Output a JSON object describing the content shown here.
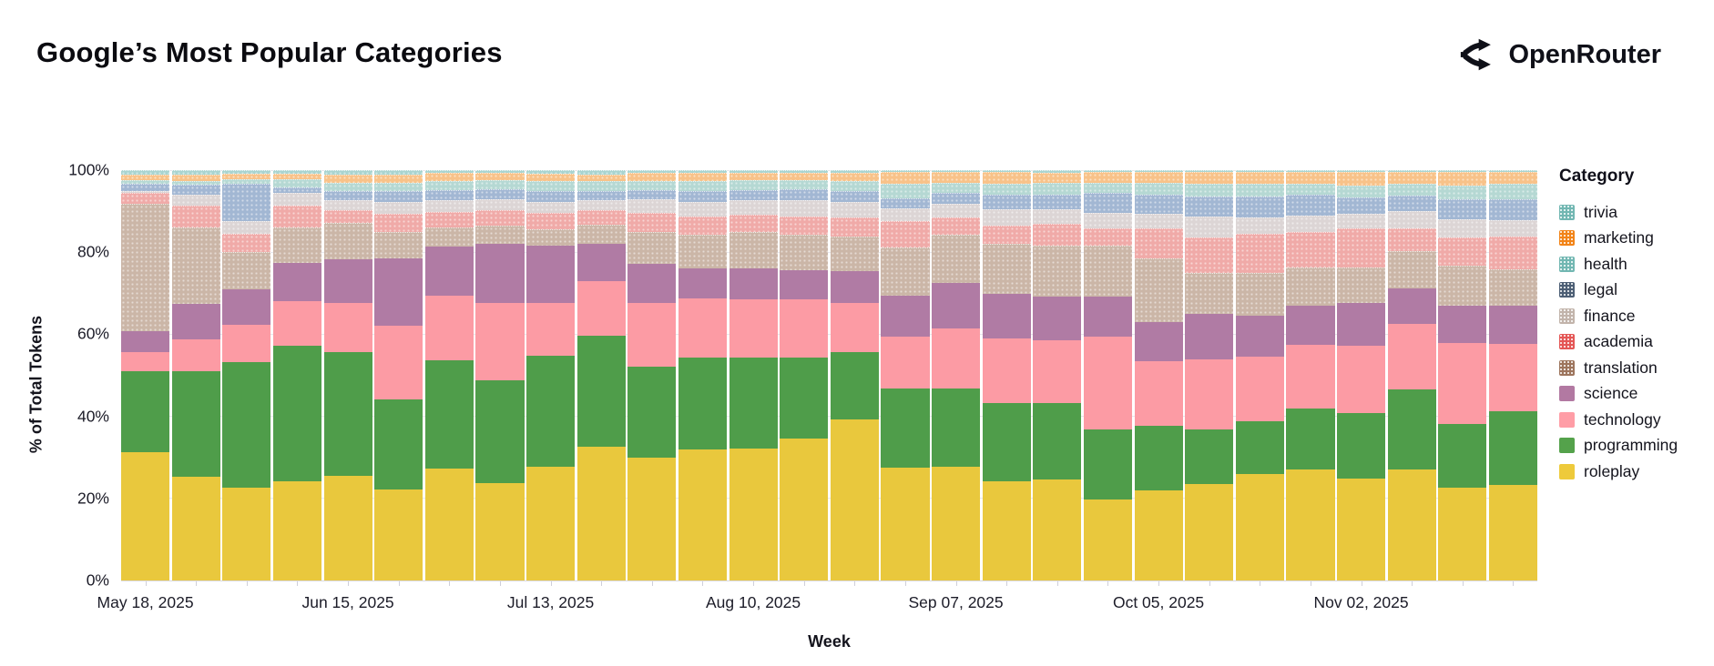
{
  "header": {
    "title": "Google’s Most Popular Categories",
    "brand": "OpenRouter"
  },
  "chart_data": {
    "type": "bar",
    "subtype": "stacked-percent",
    "title": "Google’s Most Popular Categories",
    "xlabel": "Week",
    "ylabel": "% of Total Tokens",
    "ylim": [
      0,
      100
    ],
    "y_ticks": [
      "0%",
      "20%",
      "40%",
      "60%",
      "80%",
      "100%"
    ],
    "x_tick_labels": [
      "May 18, 2025",
      "Jun 15, 2025",
      "Jul 13, 2025",
      "Aug 10, 2025",
      "Sep 07, 2025",
      "Oct 05, 2025",
      "Nov 02, 2025"
    ],
    "labeled_tick_indices": [
      0,
      4,
      8,
      12,
      16,
      20,
      24
    ],
    "legend_title": "Category",
    "legend_position": "right",
    "grid": true,
    "categories": [
      {
        "name": "trivia",
        "legend_color": "#72b7b2",
        "bar_color": "#a9d4d0",
        "textured": true
      },
      {
        "name": "marketing",
        "legend_color": "#f28418",
        "bar_color": "#f8c289",
        "textured": true
      },
      {
        "name": "health",
        "legend_color": "#72b7b2",
        "bar_color": "#b5d8d3",
        "textured": true
      },
      {
        "name": "legal",
        "legend_color": "#4d5f75",
        "bar_color": "#a2b7d3",
        "textured": true
      },
      {
        "name": "finance",
        "legend_color": "#c2b4ab",
        "bar_color": "#dcd5d5",
        "textured": true
      },
      {
        "name": "academia",
        "legend_color": "#e45756",
        "bar_color": "#f0aaa8",
        "textured": true
      },
      {
        "name": "translation",
        "legend_color": "#9d755d",
        "bar_color": "#cbb6a7",
        "textured": true
      },
      {
        "name": "science",
        "legend_color": "#b279a2",
        "bar_color": "#b07ba4",
        "textured": false
      },
      {
        "name": "technology",
        "legend_color": "#ff9da6",
        "bar_color": "#fc9ba4",
        "textured": false
      },
      {
        "name": "programming",
        "legend_color": "#54a24b",
        "bar_color": "#4f9d4a",
        "textured": false
      },
      {
        "name": "roleplay",
        "legend_color": "#eeca3b",
        "bar_color": "#e9c83d",
        "textured": false
      }
    ],
    "weeks": [
      {
        "label": "May 18, 2025",
        "values": {
          "roleplay": 31.8,
          "programming": 19.9,
          "technology": 4.9,
          "science": 5.1,
          "translation": 31.2,
          "academia": 2.5,
          "finance": 0.4,
          "legal": 1.6,
          "health": 0.6,
          "marketing": 1.2,
          "trivia": 0.8
        }
      },
      {
        "label": "May 25, 2025",
        "values": {
          "roleplay": 25.6,
          "programming": 26.1,
          "technology": 8.0,
          "science": 8.7,
          "translation": 18.8,
          "academia": 5.1,
          "finance": 2.4,
          "legal": 2.3,
          "health": 0.7,
          "marketing": 1.5,
          "trivia": 0.8
        }
      },
      {
        "label": "Jun 01, 2025",
        "values": {
          "roleplay": 22.9,
          "programming": 31.2,
          "technology": 9.1,
          "science": 8.8,
          "translation": 9.0,
          "academia": 4.3,
          "finance": 3.1,
          "legal": 8.8,
          "health": 1.0,
          "marketing": 1.2,
          "trivia": 0.6
        }
      },
      {
        "label": "Jun 08, 2025",
        "values": {
          "roleplay": 24.5,
          "programming": 33.5,
          "technology": 11.2,
          "science": 9.4,
          "translation": 8.5,
          "academia": 5.3,
          "finance": 2.8,
          "legal": 1.1,
          "health": 1.9,
          "marketing": 1.1,
          "trivia": 0.7
        }
      },
      {
        "label": "Jun 15, 2025",
        "values": {
          "roleplay": 25.8,
          "programming": 30.7,
          "technology": 12.1,
          "science": 10.8,
          "translation": 8.8,
          "academia": 3.1,
          "finance": 2.1,
          "legal": 2.0,
          "health": 1.8,
          "marketing": 1.8,
          "trivia": 1.0
        }
      },
      {
        "label": "Jun 22, 2025",
        "values": {
          "roleplay": 22.5,
          "programming": 22.3,
          "technology": 18.2,
          "science": 16.7,
          "translation": 6.3,
          "academia": 4.4,
          "finance": 2.6,
          "legal": 2.4,
          "health": 2.0,
          "marketing": 1.6,
          "trivia": 1.0
        }
      },
      {
        "label": "Jun 29, 2025",
        "values": {
          "roleplay": 27.6,
          "programming": 26.9,
          "technology": 16.0,
          "science": 12.2,
          "translation": 4.4,
          "academia": 3.7,
          "finance": 2.7,
          "legal": 2.2,
          "health": 2.0,
          "marketing": 1.8,
          "trivia": 0.5
        }
      },
      {
        "label": "Jul 06, 2025",
        "values": {
          "roleplay": 24.2,
          "programming": 25.4,
          "technology": 19.1,
          "science": 14.7,
          "translation": 4.1,
          "academia": 3.7,
          "finance": 2.5,
          "legal": 2.3,
          "health": 1.9,
          "marketing": 1.7,
          "trivia": 0.4
        }
      },
      {
        "label": "Jul 13, 2025",
        "values": {
          "roleplay": 28.1,
          "programming": 27.6,
          "technology": 12.9,
          "science": 14.2,
          "translation": 4.0,
          "academia": 3.8,
          "finance": 2.4,
          "legal": 2.6,
          "health": 2.2,
          "marketing": 1.6,
          "trivia": 0.6
        }
      },
      {
        "label": "Jul 20, 2025",
        "values": {
          "roleplay": 33.0,
          "programming": 27.6,
          "technology": 13.5,
          "science": 9.2,
          "translation": 4.6,
          "academia": 3.3,
          "finance": 2.2,
          "legal": 2.2,
          "health": 2.2,
          "marketing": 1.4,
          "trivia": 0.8
        }
      },
      {
        "label": "Jul 27, 2025",
        "values": {
          "roleplay": 30.4,
          "programming": 22.5,
          "technology": 15.8,
          "science": 9.6,
          "translation": 7.7,
          "academia": 4.6,
          "finance": 3.1,
          "legal": 2.0,
          "health": 2.1,
          "marketing": 1.8,
          "trivia": 0.4
        }
      },
      {
        "label": "Aug 03, 2025",
        "values": {
          "roleplay": 32.4,
          "programming": 22.8,
          "technology": 14.6,
          "science": 7.4,
          "translation": 8.2,
          "academia": 4.3,
          "finance": 3.3,
          "legal": 2.4,
          "health": 2.4,
          "marketing": 1.8,
          "trivia": 0.4
        }
      },
      {
        "label": "Aug 10, 2025",
        "values": {
          "roleplay": 32.6,
          "programming": 22.6,
          "technology": 14.4,
          "science": 7.6,
          "translation": 8.8,
          "academia": 4.1,
          "finance": 3.3,
          "legal": 2.3,
          "health": 2.2,
          "marketing": 1.7,
          "trivia": 0.4
        }
      },
      {
        "label": "Aug 17, 2025",
        "values": {
          "roleplay": 35.2,
          "programming": 20.0,
          "technology": 14.4,
          "science": 7.2,
          "translation": 8.5,
          "academia": 4.4,
          "finance": 3.8,
          "legal": 2.5,
          "health": 1.9,
          "marketing": 1.7,
          "trivia": 0.4
        }
      },
      {
        "label": "Aug 24, 2025",
        "values": {
          "roleplay": 39.8,
          "programming": 16.8,
          "technology": 12.1,
          "science": 7.9,
          "translation": 8.3,
          "academia": 4.4,
          "finance": 3.7,
          "legal": 2.6,
          "health": 2.2,
          "marketing": 1.8,
          "trivia": 0.4
        }
      },
      {
        "label": "Aug 31, 2025",
        "values": {
          "roleplay": 28.0,
          "programming": 19.6,
          "technology": 12.8,
          "science": 10.1,
          "translation": 11.8,
          "academia": 6.1,
          "finance": 3.1,
          "legal": 2.2,
          "health": 3.4,
          "marketing": 2.7,
          "trivia": 0.2
        }
      },
      {
        "label": "Sep 07, 2025",
        "values": {
          "roleplay": 28.2,
          "programming": 19.4,
          "technology": 14.7,
          "science": 11.3,
          "translation": 11.7,
          "academia": 4.0,
          "finance": 3.2,
          "legal": 2.5,
          "health": 2.4,
          "marketing": 2.4,
          "trivia": 0.2
        }
      },
      {
        "label": "Sep 14, 2025",
        "values": {
          "roleplay": 24.5,
          "programming": 19.5,
          "technology": 15.9,
          "science": 11.0,
          "translation": 12.2,
          "academia": 4.2,
          "finance": 4.0,
          "legal": 3.2,
          "health": 2.6,
          "marketing": 2.6,
          "trivia": 0.3
        }
      },
      {
        "label": "Sep 21, 2025",
        "values": {
          "roleplay": 24.9,
          "programming": 19.1,
          "technology": 15.5,
          "science": 10.7,
          "translation": 12.5,
          "academia": 5.2,
          "finance": 3.4,
          "legal": 3.2,
          "health": 2.7,
          "marketing": 2.4,
          "trivia": 0.4
        }
      },
      {
        "label": "Sep 28, 2025",
        "values": {
          "roleplay": 20.1,
          "programming": 17.2,
          "technology": 23.1,
          "science": 9.9,
          "translation": 12.4,
          "academia": 4.1,
          "finance": 3.6,
          "legal": 4.6,
          "health": 2.4,
          "marketing": 2.4,
          "trivia": 0.2
        }
      },
      {
        "label": "Oct 05, 2025",
        "values": {
          "roleplay": 22.3,
          "programming": 15.9,
          "technology": 16.1,
          "science": 9.6,
          "translation": 15.6,
          "academia": 7.2,
          "finance": 3.3,
          "legal": 4.5,
          "health": 2.9,
          "marketing": 2.3,
          "trivia": 0.3
        }
      },
      {
        "label": "Oct 12, 2025",
        "values": {
          "roleplay": 23.8,
          "programming": 13.6,
          "technology": 17.3,
          "science": 11.3,
          "translation": 9.9,
          "academia": 8.5,
          "finance": 4.9,
          "legal": 4.8,
          "health": 3.0,
          "marketing": 2.7,
          "trivia": 0.2
        }
      },
      {
        "label": "Oct 19, 2025",
        "values": {
          "roleplay": 26.4,
          "programming": 12.9,
          "technology": 16.0,
          "science": 10.3,
          "translation": 10.4,
          "academia": 9.3,
          "finance": 3.9,
          "legal": 5.0,
          "health": 2.9,
          "marketing": 2.7,
          "trivia": 0.2
        }
      },
      {
        "label": "Oct 26, 2025",
        "values": {
          "roleplay": 27.5,
          "programming": 15.1,
          "technology": 15.8,
          "science": 9.6,
          "translation": 9.2,
          "academia": 8.7,
          "finance": 3.8,
          "legal": 4.8,
          "health": 2.6,
          "marketing": 2.7,
          "trivia": 0.2
        }
      },
      {
        "label": "Nov 02, 2025",
        "values": {
          "roleplay": 25.3,
          "programming": 16.2,
          "technology": 16.5,
          "science": 10.7,
          "translation": 8.5,
          "academia": 9.6,
          "finance": 3.3,
          "legal": 3.9,
          "health": 2.7,
          "marketing": 3.1,
          "trivia": 0.2
        }
      },
      {
        "label": "Nov 09, 2025",
        "values": {
          "roleplay": 27.5,
          "programming": 19.7,
          "technology": 16.4,
          "science": 8.7,
          "translation": 9.0,
          "academia": 5.5,
          "finance": 4.0,
          "legal": 3.5,
          "health": 2.8,
          "marketing": 2.7,
          "trivia": 0.2
        }
      },
      {
        "label": "Nov 16, 2025",
        "values": {
          "roleplay": 23.0,
          "programming": 15.8,
          "technology": 19.9,
          "science": 9.2,
          "translation": 9.8,
          "academia": 6.8,
          "finance": 4.3,
          "legal": 4.6,
          "health": 3.3,
          "marketing": 3.1,
          "trivia": 0.2
        }
      },
      {
        "label": "Nov 23, 2025",
        "values": {
          "roleplay": 23.6,
          "programming": 18.2,
          "technology": 16.8,
          "science": 9.4,
          "translation": 8.8,
          "academia": 7.9,
          "finance": 3.9,
          "legal": 4.8,
          "health": 3.7,
          "marketing": 2.7,
          "trivia": 0.2
        }
      }
    ]
  }
}
